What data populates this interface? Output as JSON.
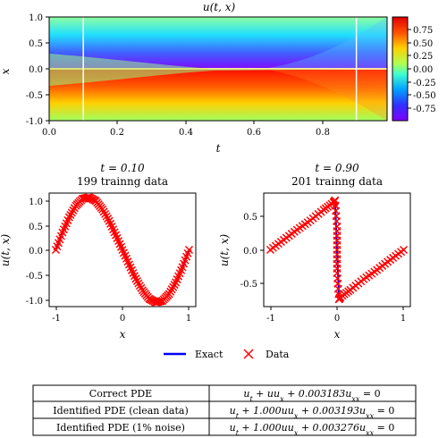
{
  "chart_data": [
    {
      "type": "heatmap",
      "title": "u(t, x)",
      "xlabel": "t",
      "ylabel": "x",
      "xlim": [
        0,
        0.99
      ],
      "ylim": [
        -1,
        1
      ],
      "x_ticks": [
        "0.0",
        "0.2",
        "0.4",
        "0.6",
        "0.8"
      ],
      "y_ticks": [
        "1.0",
        "0.5",
        "0.0",
        "-0.5",
        "-1.0"
      ],
      "colorbar": {
        "range": [
          -0.95,
          0.95
        ],
        "ticks": [
          "0.75",
          "0.50",
          "0.25",
          "0.00",
          "-0.25",
          "-0.50",
          "-0.75"
        ],
        "colormap": "jet"
      },
      "vertical_lines_at_t": [
        0.1,
        0.9
      ]
    },
    {
      "type": "line",
      "title": "t = 0.10",
      "subtitle": "199 trainng data",
      "xlabel": "x",
      "ylabel": "u(t, x)",
      "xlim": [
        -1.1,
        1.1
      ],
      "ylim": [
        -1.08,
        1.08
      ],
      "x_ticks": [
        "-1",
        "0",
        "1"
      ],
      "y_ticks": [
        "1.0",
        "0.5",
        "0.0",
        "-0.5",
        "-1.0"
      ],
      "series": [
        {
          "name": "Exact",
          "style": "line",
          "color": "#0000ff",
          "x": [
            -1.0,
            -0.9,
            -0.8,
            -0.7,
            -0.6,
            -0.5,
            -0.4,
            -0.3,
            -0.2,
            -0.1,
            0.0,
            0.1,
            0.2,
            0.3,
            0.4,
            0.5,
            0.6,
            0.7,
            0.8,
            0.9,
            1.0
          ],
          "y": [
            0.0,
            0.33,
            0.62,
            0.84,
            0.97,
            1.0,
            0.93,
            0.77,
            0.55,
            0.28,
            0.0,
            -0.28,
            -0.55,
            -0.77,
            -0.93,
            -1.0,
            -0.97,
            -0.84,
            -0.62,
            -0.33,
            0.0
          ]
        },
        {
          "name": "Data",
          "style": "markers",
          "color": "#ff0000",
          "x": [
            -1.0,
            -0.9,
            -0.8,
            -0.7,
            -0.6,
            -0.5,
            -0.4,
            -0.3,
            -0.2,
            -0.1,
            0.0,
            0.1,
            0.2,
            0.3,
            0.4,
            0.5,
            0.6,
            0.7,
            0.8,
            0.9,
            1.0
          ],
          "y": [
            0.0,
            0.33,
            0.62,
            0.84,
            0.97,
            1.0,
            0.93,
            0.77,
            0.55,
            0.28,
            0.0,
            -0.28,
            -0.55,
            -0.77,
            -0.93,
            -1.0,
            -0.97,
            -0.84,
            -0.62,
            -0.33,
            0.0
          ]
        }
      ]
    },
    {
      "type": "line",
      "title": "t = 0.90",
      "subtitle": "201 trainng data",
      "xlabel": "x",
      "ylabel": "u(t, x)",
      "xlim": [
        -1.1,
        1.1
      ],
      "ylim": [
        -0.85,
        0.85
      ],
      "x_ticks": [
        "-1",
        "0",
        "1"
      ],
      "y_ticks": [
        "0.5",
        "0.0",
        "-0.5"
      ],
      "series": [
        {
          "name": "Exact",
          "style": "line",
          "color": "#0000ff",
          "x": [
            -1.0,
            -0.8,
            -0.6,
            -0.4,
            -0.2,
            -0.03,
            0.0,
            0.03,
            0.2,
            0.4,
            0.6,
            0.8,
            1.0
          ],
          "y": [
            0.0,
            0.15,
            0.3,
            0.44,
            0.6,
            0.74,
            0.0,
            -0.74,
            -0.6,
            -0.44,
            -0.3,
            -0.15,
            0.0
          ]
        },
        {
          "name": "Data",
          "style": "markers",
          "color": "#ff0000",
          "x": [
            -1.0,
            -0.8,
            -0.6,
            -0.4,
            -0.2,
            -0.05,
            -0.03,
            0.0,
            0.0,
            0.0,
            0.03,
            0.05,
            0.2,
            0.4,
            0.6,
            0.8,
            1.0
          ],
          "y": [
            0.0,
            0.15,
            0.3,
            0.44,
            0.6,
            0.71,
            0.74,
            0.35,
            0.0,
            -0.35,
            -0.74,
            -0.71,
            -0.6,
            -0.44,
            -0.3,
            -0.15,
            0.0
          ]
        }
      ]
    }
  ],
  "legend": [
    {
      "label": "Exact",
      "color": "#0000ff",
      "marker": "line"
    },
    {
      "label": "Data",
      "color": "#ff0000",
      "marker": "x"
    }
  ],
  "table": {
    "rows": [
      {
        "label": "Correct PDE",
        "equation": "u_t + uu_x + 0.003183u_xx = 0"
      },
      {
        "label": "Identified PDE (clean data)",
        "equation": "u_t + 1.000uu_x + 0.003193u_xx = 0"
      },
      {
        "label": "Identified PDE (1% noise)",
        "equation": "u_t + 1.000uu_x + 0.003276u_xx = 0"
      }
    ]
  }
}
